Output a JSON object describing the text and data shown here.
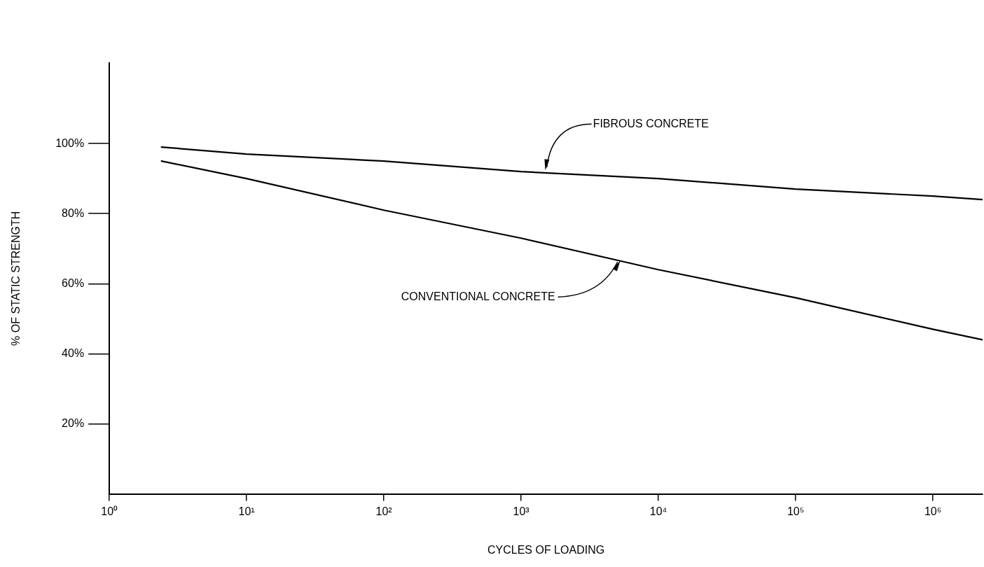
{
  "chart_data": {
    "type": "line",
    "xlabel": "CYCLES OF LOADING",
    "ylabel": "% OF STATIC STRENGTH",
    "series": [
      {
        "color": "#000000",
        "x": [
          2.4,
          10,
          100,
          1000,
          10000,
          100000,
          1000000,
          2300000
        ],
        "values": [
          99,
          97,
          95,
          92,
          90,
          87,
          85,
          84
        ]
      },
      {
        "color": "#000000",
        "x": [
          2.4,
          10,
          100,
          1000,
          10000,
          100000,
          1000000,
          2300000
        ],
        "values": [
          95,
          90,
          81,
          73,
          64,
          56,
          47,
          44
        ]
      }
    ],
    "log": "x",
    "xlim": [
      1,
      2300000
    ],
    "xticks": [
      {
        "value": 1,
        "label": "10⁰"
      },
      {
        "value": 10,
        "label": "10¹"
      },
      {
        "value": 100,
        "label": "10²"
      },
      {
        "value": 1000,
        "label": "10³"
      },
      {
        "value": 10000,
        "label": "10⁴"
      },
      {
        "value": 100000,
        "label": "10⁵"
      },
      {
        "value": 1000000,
        "label": "10⁶"
      }
    ],
    "ylim": [
      0,
      123
    ],
    "yticks": [
      {
        "value": 20,
        "label": "20%"
      },
      {
        "value": 40,
        "label": "40%"
      },
      {
        "value": 60,
        "label": "60%"
      },
      {
        "value": 80,
        "label": "80%"
      },
      {
        "value": 100,
        "label": "100%"
      }
    ],
    "grid": false,
    "legend": false,
    "marker": "none",
    "line_style": "solid",
    "annotations": [
      {
        "text": "FIBROUS CONCRETE",
        "x": 1500,
        "y": 92
      },
      {
        "text": "CONVENTIONAL CONCRETE",
        "x": 5400,
        "y": 67
      }
    ]
  }
}
